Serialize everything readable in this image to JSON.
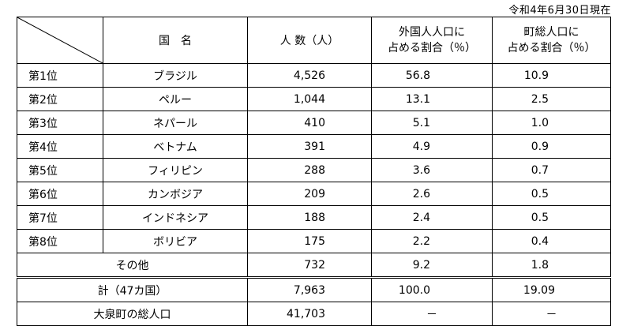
{
  "caption": "令和4年6月30日現在",
  "headers": {
    "country": "国　名",
    "population": "人 数（人）",
    "foreign_share_line1": "外国人人口に",
    "foreign_share_line2": "占める割合（％）",
    "town_share_line1": "町総人口に",
    "town_share_line2": "占める割合（％）"
  },
  "rows": [
    {
      "rank": "第1位",
      "country": "ブラジル",
      "count": "4,526",
      "foreign_pct": "56.8",
      "town_pct": "10.9"
    },
    {
      "rank": "第2位",
      "country": "ペルー",
      "count": "1,044",
      "foreign_pct": "13.1",
      "town_pct": "2.5"
    },
    {
      "rank": "第3位",
      "country": "ネパール",
      "count": "410",
      "foreign_pct": "5.1",
      "town_pct": "1.0"
    },
    {
      "rank": "第4位",
      "country": "ベトナム",
      "count": "391",
      "foreign_pct": "4.9",
      "town_pct": "0.9"
    },
    {
      "rank": "第5位",
      "country": "フィリピン",
      "count": "288",
      "foreign_pct": "3.6",
      "town_pct": "0.7"
    },
    {
      "rank": "第6位",
      "country": "カンボジア",
      "count": "209",
      "foreign_pct": "2.6",
      "town_pct": "0.5"
    },
    {
      "rank": "第7位",
      "country": "インドネシア",
      "count": "188",
      "foreign_pct": "2.4",
      "town_pct": "0.5"
    },
    {
      "rank": "第8位",
      "country": "ボリビア",
      "count": "175",
      "foreign_pct": "2.2",
      "town_pct": "0.4"
    }
  ],
  "other": {
    "label": "その他",
    "count": "732",
    "foreign_pct": "9.2",
    "town_pct": "1.8"
  },
  "total": {
    "label": "計（47カ国）",
    "count": "7,963",
    "foreign_pct": "100.0",
    "town_pct": "19.09"
  },
  "town_total": {
    "label": "大泉町の総人口",
    "count": "41,703",
    "foreign_pct": "－",
    "town_pct": "－"
  }
}
